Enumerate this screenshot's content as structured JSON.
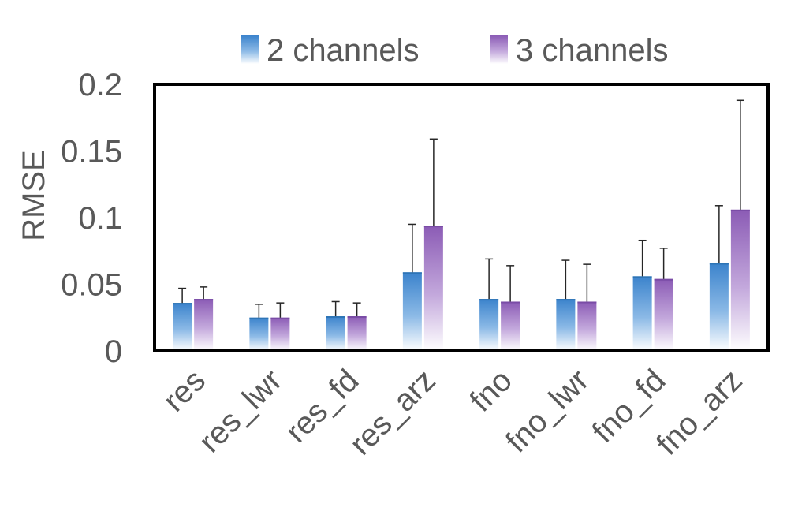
{
  "chart_data": {
    "type": "bar",
    "categories": [
      "res",
      "res_lwr",
      "res_fd",
      "res_arz",
      "fno",
      "fno_lwr",
      "fno_fd",
      "fno_arz"
    ],
    "series": [
      {
        "name": "2 channels",
        "values": [
          0.036,
          0.025,
          0.026,
          0.059,
          0.039,
          0.039,
          0.056,
          0.066
        ],
        "error_upper": [
          0.047,
          0.035,
          0.037,
          0.095,
          0.069,
          0.068,
          0.083,
          0.109
        ],
        "color": "#3b83cc"
      },
      {
        "name": "3 channels",
        "values": [
          0.039,
          0.025,
          0.026,
          0.094,
          0.037,
          0.037,
          0.054,
          0.106
        ],
        "error_upper": [
          0.048,
          0.036,
          0.036,
          0.159,
          0.064,
          0.065,
          0.077,
          0.188
        ],
        "color": "#8b5bb5"
      }
    ],
    "ylabel": "RMSE",
    "xlabel": "",
    "ylim": [
      0,
      0.2
    ],
    "yticks": [
      "0",
      "0.05",
      "0.1",
      "0.15",
      "0.2"
    ],
    "ytick_values": [
      0,
      0.05,
      0.1,
      0.15,
      0.2
    ],
    "grid": false,
    "legend_position": "top-right"
  }
}
